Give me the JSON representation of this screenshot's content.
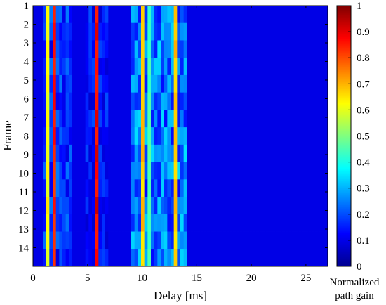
{
  "chart_data": {
    "type": "heatmap",
    "title": "",
    "xlabel": "Delay [ms]",
    "ylabel": "Frame",
    "colorbar_label": [
      "Normalized",
      "path gain"
    ],
    "xlim": [
      0,
      27
    ],
    "ylim": [
      1,
      15
    ],
    "color_range": [
      0,
      1
    ],
    "colormap": "jet",
    "x_ticks": [
      0,
      5,
      10,
      15,
      20,
      25
    ],
    "y_ticks": [
      1,
      2,
      3,
      4,
      5,
      6,
      7,
      8,
      9,
      10,
      11,
      12,
      13,
      14
    ],
    "colorbar_ticks": [
      0,
      0.1,
      0.2,
      0.3,
      0.4,
      0.5,
      0.6,
      0.7,
      0.8,
      0.9,
      1
    ],
    "frames": 15,
    "delay_bins": 90,
    "background_gain": 0.1,
    "multipath_region_gain": [
      {
        "delay_start": 0.9,
        "delay_end": 3.6,
        "gain": 0.17
      },
      {
        "delay_start": 4.8,
        "delay_end": 6.9,
        "gain": 0.14
      },
      {
        "delay_start": 9.0,
        "delay_end": 14.1,
        "gain": 0.24
      }
    ],
    "dominant_paths": [
      {
        "delay_ms": 1.4,
        "gain": 0.63
      },
      {
        "delay_ms": 2.0,
        "gain": 0.85
      },
      {
        "delay_ms": 5.9,
        "gain": 0.9
      },
      {
        "delay_ms": 10.0,
        "gain": 0.68
      },
      {
        "delay_ms": 10.6,
        "gain": 0.45
      },
      {
        "delay_ms": 13.1,
        "gain": 0.68
      }
    ]
  }
}
